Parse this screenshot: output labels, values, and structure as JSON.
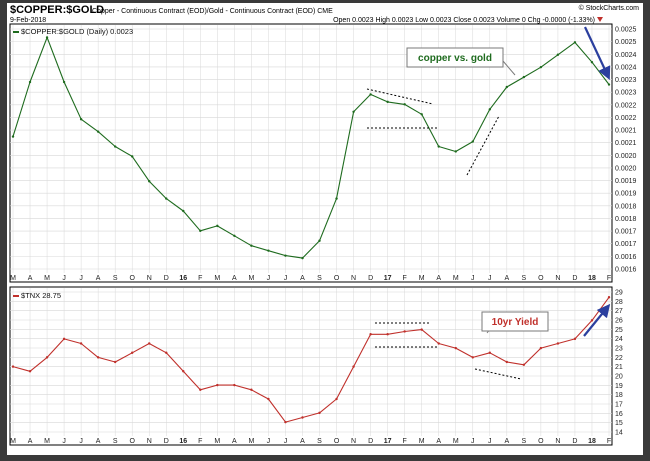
{
  "header": {
    "title": "$COPPER:$GOLD",
    "subtitle": "Copper - Continuous Contract (EOD)/Gold - Continuous Contract (EOD)  CME",
    "date": "9-Feb-2018",
    "watermark": "© StockCharts.com",
    "quote": "Open 0.0023  High 0.0023  Low 0.0023  Close 0.0023  Volume 0  Chg -0.0000 (-1.33%)"
  },
  "colors": {
    "copper_line": "#1e6b1e",
    "tnx_line": "#c0302b",
    "arrow": "#2b3f9e",
    "grid": "#d8d8d8",
    "label_box_border": "#7a7a7a"
  },
  "icons": {
    "change": "down-triangle-icon"
  },
  "chart_data": [
    {
      "type": "line",
      "panel": "top",
      "legend": "$COPPER:$GOLD (Daily) 0.0023",
      "annotation": "copper vs. gold",
      "ylim": [
        0.00155,
        0.00255
      ],
      "y_ticks": [
        "0.0016",
        "0.0016",
        "0.0017",
        "0.0017",
        "0.0018",
        "0.0018",
        "0.0019",
        "0.0019",
        "0.0020",
        "0.0020",
        "0.0021",
        "0.0021",
        "0.0022",
        "0.0022",
        "0.0023",
        "0.0023",
        "0.0024",
        "0.0024",
        "0.0025",
        "0.0025"
      ],
      "x": [
        "2015-03",
        "2015-04",
        "2015-05",
        "2015-06",
        "2015-07",
        "2015-08",
        "2015-09",
        "2015-10",
        "2015-11",
        "2015-12",
        "2016-01",
        "2016-02",
        "2016-03",
        "2016-04",
        "2016-05",
        "2016-06",
        "2016-07",
        "2016-08",
        "2016-09",
        "2016-10",
        "2016-11",
        "2016-12",
        "2017-01",
        "2017-02",
        "2017-03",
        "2017-04",
        "2017-05",
        "2017-06",
        "2017-07",
        "2017-08",
        "2017-09",
        "2017-10",
        "2017-11",
        "2017-12",
        "2018-01",
        "2018-02"
      ],
      "y": [
        0.0021,
        0.00232,
        0.0025,
        0.00232,
        0.00217,
        0.00212,
        0.00206,
        0.00202,
        0.00192,
        0.00185,
        0.0018,
        0.00172,
        0.00174,
        0.0017,
        0.00166,
        0.00164,
        0.00162,
        0.00161,
        0.00168,
        0.00185,
        0.0022,
        0.00227,
        0.00224,
        0.00223,
        0.00219,
        0.00206,
        0.00204,
        0.00208,
        0.00221,
        0.0023,
        0.00234,
        0.00238,
        0.00243,
        0.00248,
        0.0024,
        0.00231
      ]
    },
    {
      "type": "line",
      "panel": "bottom",
      "legend": "$TNX 28.75",
      "annotation": "10yr Yield",
      "ylim": [
        13.5,
        29.5
      ],
      "y_ticks": [
        "14",
        "15",
        "16",
        "17",
        "18",
        "19",
        "20",
        "21",
        "22",
        "23",
        "24",
        "25",
        "26",
        "27",
        "28",
        "29"
      ],
      "x": [
        "2015-03",
        "2015-04",
        "2015-05",
        "2015-06",
        "2015-07",
        "2015-08",
        "2015-09",
        "2015-10",
        "2015-11",
        "2015-12",
        "2016-01",
        "2016-02",
        "2016-03",
        "2016-04",
        "2016-05",
        "2016-06",
        "2016-07",
        "2016-08",
        "2016-09",
        "2016-10",
        "2016-11",
        "2016-12",
        "2017-01",
        "2017-02",
        "2017-03",
        "2017-04",
        "2017-05",
        "2017-06",
        "2017-07",
        "2017-08",
        "2017-09",
        "2017-10",
        "2017-11",
        "2017-12",
        "2018-01",
        "2018-02"
      ],
      "y": [
        21.0,
        20.5,
        22.0,
        24.0,
        23.5,
        22.0,
        21.5,
        22.5,
        23.5,
        22.5,
        20.5,
        18.5,
        19.0,
        19.0,
        18.5,
        17.5,
        15.0,
        15.5,
        16.0,
        17.5,
        21.0,
        24.5,
        24.5,
        24.8,
        25.0,
        23.5,
        23.0,
        22.0,
        22.5,
        21.5,
        21.2,
        23.0,
        23.5,
        24.0,
        26.0,
        28.5
      ]
    }
  ],
  "x_axis": {
    "months": [
      "M",
      "A",
      "M",
      "J",
      "J",
      "A",
      "S",
      "O",
      "N",
      "D",
      "16",
      "F",
      "M",
      "A",
      "M",
      "J",
      "J",
      "A",
      "S",
      "O",
      "N",
      "D",
      "17",
      "F",
      "M",
      "A",
      "M",
      "J",
      "J",
      "A",
      "S",
      "O",
      "N",
      "D",
      "18",
      "F"
    ]
  }
}
